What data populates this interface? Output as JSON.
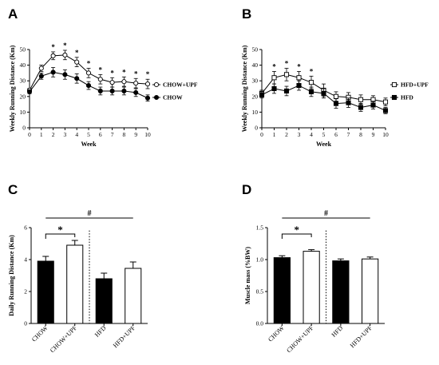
{
  "panels": {
    "A": "A",
    "B": "B",
    "C": "C",
    "D": "D"
  },
  "colors": {
    "ink": "#000000",
    "open_fill": "#ffffff",
    "closed_fill": "#000000"
  },
  "chart_data": [
    {
      "id": "A",
      "type": "line",
      "xlabel": "Week",
      "ylabel": "Weekly Running Distance (Km)",
      "xlim": [
        0,
        10
      ],
      "ylim": [
        0,
        50
      ],
      "xticks": [
        0,
        1,
        2,
        3,
        4,
        5,
        6,
        7,
        8,
        9,
        10
      ],
      "yticks": [
        0,
        10,
        20,
        30,
        40,
        50
      ],
      "legend_position": "right",
      "x": [
        0,
        1,
        2,
        3,
        4,
        5,
        6,
        7,
        8,
        9,
        10
      ],
      "series": [
        {
          "name": "CHOW+UPF",
          "marker": "open-circle",
          "values": [
            24,
            38,
            46,
            46.5,
            42,
            35,
            31,
            29,
            29.5,
            28.5,
            28
          ],
          "errors": [
            1.2,
            2,
            2.5,
            3,
            3,
            3,
            3,
            3,
            3,
            3,
            3
          ]
        },
        {
          "name": "CHOW",
          "marker": "filled-circle",
          "values": [
            23,
            33,
            35.5,
            34,
            31.5,
            27,
            23.5,
            23.5,
            23.5,
            22.5,
            19
          ],
          "errors": [
            1.2,
            2,
            3,
            3,
            3,
            2.5,
            2.5,
            2.5,
            2.5,
            2.5,
            2
          ]
        }
      ],
      "significance": [
        {
          "x": 2,
          "label": "*"
        },
        {
          "x": 3,
          "label": "*"
        },
        {
          "x": 4,
          "label": "*"
        },
        {
          "x": 5,
          "label": "*"
        },
        {
          "x": 6,
          "label": "*"
        },
        {
          "x": 7,
          "label": "*"
        },
        {
          "x": 8,
          "label": "*"
        },
        {
          "x": 9,
          "label": "*"
        },
        {
          "x": 10,
          "label": "*"
        }
      ]
    },
    {
      "id": "B",
      "type": "line",
      "xlabel": "Week",
      "ylabel": "Weekly Running Distance (Km)",
      "xlim": [
        0,
        10
      ],
      "ylim": [
        0,
        50
      ],
      "xticks": [
        0,
        1,
        2,
        3,
        4,
        5,
        6,
        7,
        8,
        9,
        10
      ],
      "yticks": [
        0,
        10,
        20,
        30,
        40,
        50
      ],
      "legend_position": "right",
      "x": [
        0,
        1,
        2,
        3,
        4,
        5,
        6,
        7,
        8,
        9,
        10
      ],
      "series": [
        {
          "name": "HFD+UPF",
          "marker": "open-square",
          "values": [
            22,
            32,
            34,
            32,
            29,
            24,
            20,
            19.5,
            18,
            18,
            16.5
          ],
          "errors": [
            2,
            4,
            4,
            4,
            4,
            4,
            3,
            3,
            3,
            2.5,
            2.5
          ]
        },
        {
          "name": "HFD",
          "marker": "filled-square",
          "values": [
            21,
            25,
            23.5,
            27,
            23,
            22,
            15.5,
            16,
            13,
            14.5,
            11
          ],
          "errors": [
            2,
            3,
            3,
            3,
            3,
            3,
            3,
            3,
            2.5,
            2.5,
            2
          ]
        }
      ],
      "significance": [
        {
          "x": 1,
          "label": "*"
        },
        {
          "x": 2,
          "label": "*"
        },
        {
          "x": 3,
          "label": "*"
        },
        {
          "x": 4,
          "label": "*"
        }
      ]
    },
    {
      "id": "C",
      "type": "bar",
      "ylabel": "Daily Running Distance (Km)",
      "ylim": [
        0,
        6
      ],
      "yticks": [
        0,
        2,
        4,
        6
      ],
      "categories": [
        "CHOW",
        "CHOW+UPF",
        "HFD",
        "HFD+UPF"
      ],
      "values": [
        3.9,
        4.9,
        2.8,
        3.45
      ],
      "errors": [
        0.3,
        0.3,
        0.35,
        0.4
      ],
      "fills": [
        "filled",
        "open",
        "filled",
        "open"
      ],
      "significance": [
        {
          "from": 0,
          "to": 1,
          "label": "*"
        },
        {
          "from": 0,
          "to": 3,
          "label": "#"
        }
      ]
    },
    {
      "id": "D",
      "type": "bar",
      "ylabel": "Muscle mass (%BW)",
      "ylim": [
        0,
        1.5
      ],
      "yticks": [
        0.0,
        0.5,
        1.0,
        1.5
      ],
      "ytick_labels": [
        "0.0",
        "0.5",
        "1.0",
        "1.5"
      ],
      "categories": [
        "CHOW",
        "CHOW+UPF",
        "HFD",
        "HFD+UPF"
      ],
      "values": [
        1.03,
        1.13,
        0.98,
        1.01
      ],
      "errors": [
        0.03,
        0.025,
        0.03,
        0.03
      ],
      "fills": [
        "filled",
        "open",
        "filled",
        "open"
      ],
      "significance": [
        {
          "from": 0,
          "to": 1,
          "label": "*"
        },
        {
          "from": 0,
          "to": 3,
          "label": "#"
        }
      ]
    }
  ]
}
